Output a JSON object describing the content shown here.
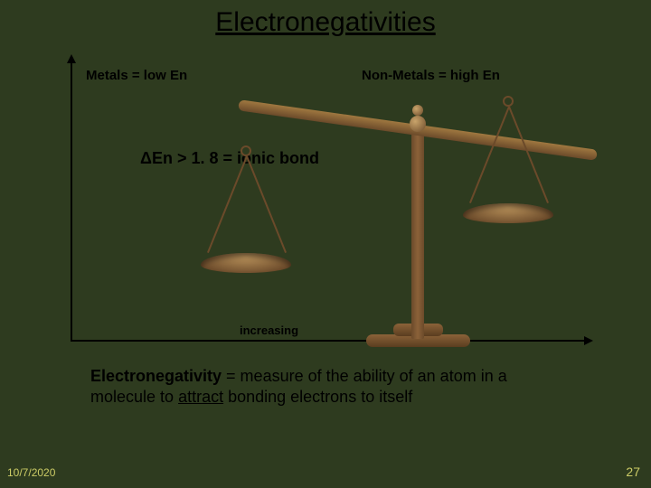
{
  "title": "Electronegativities",
  "labels": {
    "metals": "Metals = low En",
    "nonmetals": "Non-Metals = high En"
  },
  "delta_line": "ΔEn > 1. 8 = ionic bond",
  "x_axis_label": "increasing",
  "definition": {
    "term": "Electronegativity",
    "rest1": " = measure of the ability of an atom in a molecule to ",
    "attract": "attract",
    "rest2": " bonding electrons to itself"
  },
  "footer": {
    "date": "10/7/2020",
    "page": "27"
  },
  "colors": {
    "background": "#2e3b1f",
    "footer_text": "#cccc66",
    "wood_light": "#a07840",
    "wood_dark": "#6b4a2a"
  }
}
